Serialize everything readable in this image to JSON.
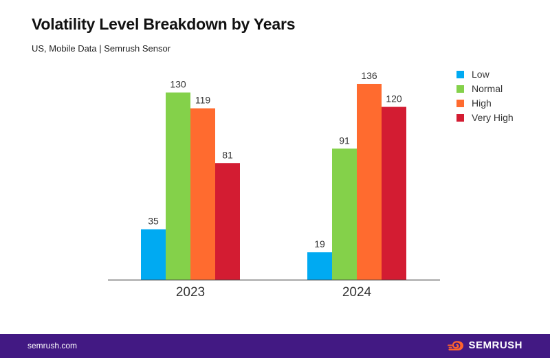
{
  "header": {
    "title": "Volatility Level Breakdown by Years",
    "subtitle": "US, Mobile Data | Semrush Sensor"
  },
  "footer": {
    "url": "semrush.com",
    "brand": "SEMRUSH",
    "brand_icon": "semrush-fire-icon",
    "background_color": "#421983"
  },
  "chart_data": {
    "type": "bar",
    "title": "Volatility Level Breakdown by Years",
    "subtitle": "US, Mobile Data | Semrush Sensor",
    "categories": [
      "2023",
      "2024"
    ],
    "series": [
      {
        "name": "Low",
        "color": "#00aaf2",
        "values": [
          35,
          19
        ]
      },
      {
        "name": "Normal",
        "color": "#84d14a",
        "values": [
          130,
          91
        ]
      },
      {
        "name": "High",
        "color": "#ff6b2f",
        "values": [
          119,
          136
        ]
      },
      {
        "name": "Very High",
        "color": "#d31c32",
        "values": [
          81,
          120
        ]
      }
    ],
    "ylim": [
      0,
      145
    ],
    "grid": false,
    "legend": "right",
    "data_labels": true
  }
}
